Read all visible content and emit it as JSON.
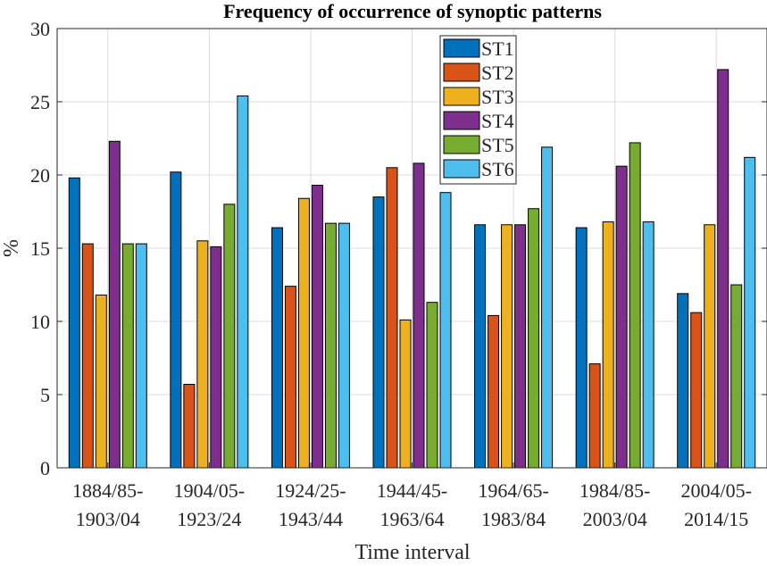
{
  "chart_data": {
    "type": "bar",
    "title": "Frequency of occurrence of synoptic patterns",
    "xlabel": "Time interval",
    "ylabel": "%",
    "ylim": [
      0,
      30
    ],
    "yticks": [
      "0",
      "5",
      "10",
      "15",
      "20",
      "25",
      "30"
    ],
    "grid": true,
    "legend_position": "top-center",
    "categories": [
      [
        "1884/85-",
        "1903/04"
      ],
      [
        "1904/05-",
        "1923/24"
      ],
      [
        "1924/25-",
        "1943/44"
      ],
      [
        "1944/45-",
        "1963/64"
      ],
      [
        "1964/65-",
        "1983/84"
      ],
      [
        "1984/85-",
        "2003/04"
      ],
      [
        "2004/05-",
        "2014/15"
      ]
    ],
    "series": [
      {
        "name": "ST1",
        "color": "#0072BD",
        "values": [
          19.8,
          20.2,
          16.4,
          18.5,
          16.6,
          16.4,
          11.9
        ]
      },
      {
        "name": "ST2",
        "color": "#D95319",
        "values": [
          15.3,
          5.7,
          12.4,
          20.5,
          10.4,
          7.1,
          10.6
        ]
      },
      {
        "name": "ST3",
        "color": "#EDB120",
        "values": [
          11.8,
          15.5,
          18.4,
          10.1,
          16.6,
          16.8,
          16.6
        ]
      },
      {
        "name": "ST4",
        "color": "#7E2F8E",
        "values": [
          22.3,
          15.1,
          19.3,
          20.8,
          16.6,
          20.6,
          27.2
        ]
      },
      {
        "name": "ST5",
        "color": "#77AC30",
        "values": [
          15.3,
          18.0,
          16.7,
          11.3,
          17.7,
          22.2,
          12.5
        ]
      },
      {
        "name": "ST6",
        "color": "#4DBEEE",
        "values": [
          15.3,
          25.4,
          16.7,
          18.8,
          21.9,
          16.8,
          21.2
        ]
      }
    ]
  }
}
